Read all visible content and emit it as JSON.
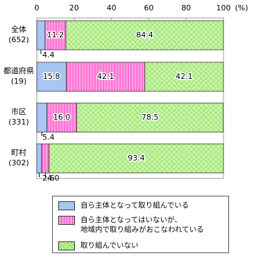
{
  "chart_data": {
    "type": "stacked-barh",
    "categories": [
      [
        "全体",
        "(652)"
      ],
      [
        "都道府県",
        "(19)"
      ],
      [
        "市区",
        "(331)"
      ],
      [
        "町村",
        "(302)"
      ]
    ],
    "series": [
      {
        "name": "自ら主体となって取り組んでいる",
        "color": "#a9c5f2",
        "values": [
          4.4,
          15.8,
          5.4,
          2.6
        ]
      },
      {
        "name": "自ら主体となってはいないが、\n地域内で取り組みがおこなわれている",
        "color": "#ff9fe0",
        "values": [
          11.2,
          42.1,
          16.0,
          4.0
        ],
        "value_labels": [
          "11.2",
          "42.1",
          "16.0",
          "4.0"
        ]
      },
      {
        "name": "取り組んでいない",
        "color": "#bdf19a",
        "values": [
          84.4,
          42.1,
          78.5,
          93.4
        ]
      }
    ],
    "xlim": [
      0,
      100
    ],
    "xticks": [
      0,
      20,
      40,
      60,
      80,
      100
    ],
    "xlabel": "(%)"
  }
}
